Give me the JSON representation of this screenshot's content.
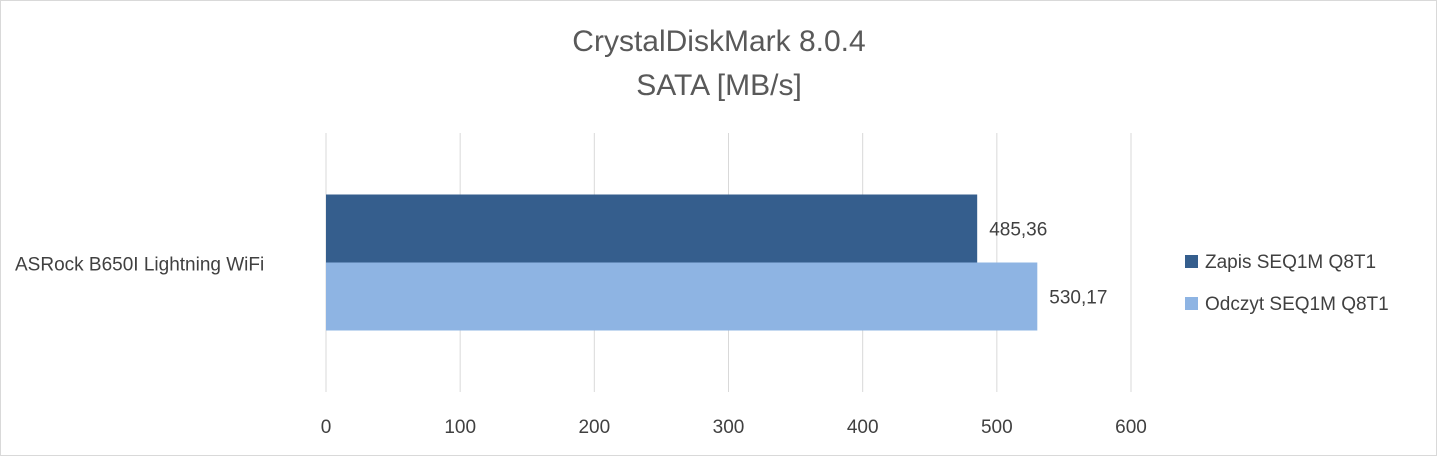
{
  "chart_data": {
    "type": "hbar",
    "title": [
      "CrystalDiskMark 8.0.4",
      "SATA [MB/s]"
    ],
    "categories": [
      "ASRock B650I Lightning WiFi"
    ],
    "series": [
      {
        "name": "Zapis SEQ1M Q8T1",
        "color": "#355e8d",
        "values": [
          485.36
        ],
        "value_labels": [
          "485,36"
        ]
      },
      {
        "name": "Odczyt SEQ1M Q8T1",
        "color": "#8eb4e3",
        "values": [
          530.17
        ],
        "value_labels": [
          "530,17"
        ]
      }
    ],
    "xlim": [
      0,
      600
    ],
    "xticks": [
      0,
      100,
      200,
      300,
      400,
      500,
      600
    ],
    "grid": true,
    "legend": "right"
  }
}
